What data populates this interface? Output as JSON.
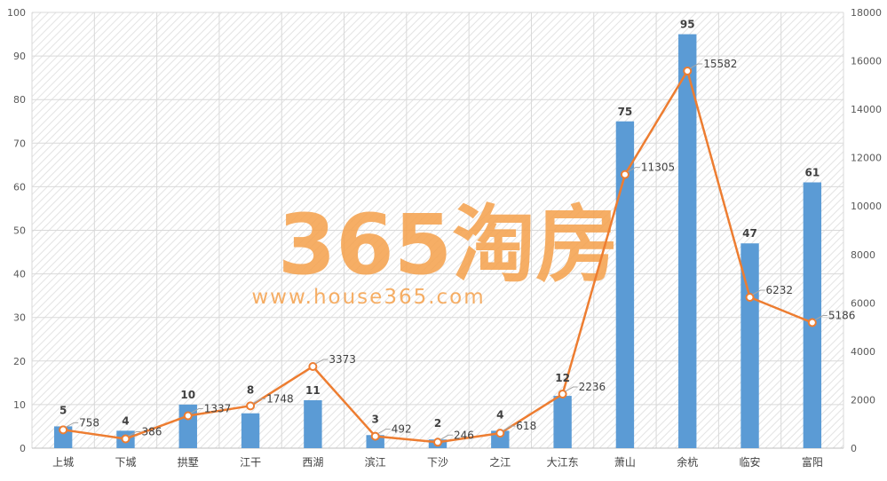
{
  "chart_data": {
    "type": "bar",
    "categories": [
      "上城",
      "下城",
      "拱墅",
      "江干",
      "西湖",
      "滨江",
      "下沙",
      "之江",
      "大江东",
      "萧山",
      "余杭",
      "临安",
      "富阳"
    ],
    "series": [
      {
        "type": "bar",
        "axis": "left",
        "color": "#5b9bd5",
        "values": [
          5,
          4,
          10,
          8,
          11,
          3,
          2,
          4,
          12,
          75,
          95,
          47,
          61
        ]
      },
      {
        "type": "line",
        "axis": "right",
        "color": "#ed7d31",
        "values": [
          758,
          386,
          1337,
          1748,
          3373,
          492,
          246,
          618,
          2236,
          11305,
          15582,
          6232,
          5186
        ]
      }
    ],
    "y_left": {
      "min": 0,
      "max": 100,
      "step": 10
    },
    "y_right": {
      "min": 0,
      "max": 18000,
      "step": 2000
    },
    "grid": "both",
    "watermark": {
      "logo_text": "365淘房",
      "url_text": "www.house365.com",
      "color": "#f5a04a"
    }
  }
}
